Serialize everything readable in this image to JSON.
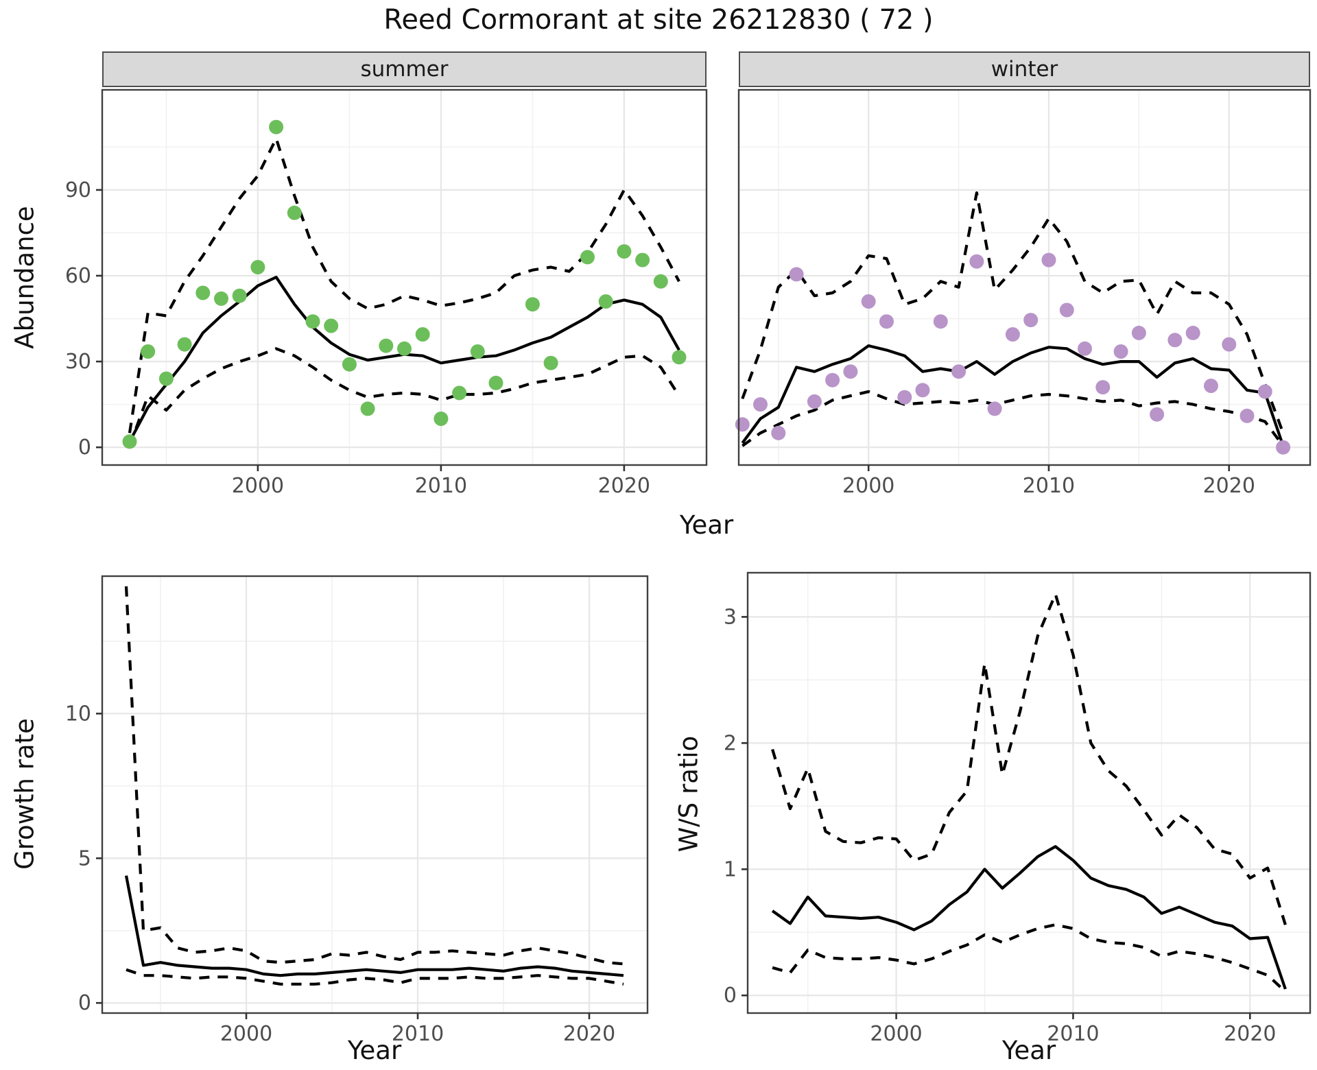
{
  "title": "Reed Cormorant at site 26212830 ( 72 )",
  "colors": {
    "summer_point": "#6CBE5A",
    "winter_point": "#B894C9",
    "line": "#000000",
    "grid_major": "#E7E7E7",
    "grid_minor": "#F1F1F1",
    "strip_bg": "#D9D9D9",
    "panel_border": "#404040",
    "tick_text": "#4D4D4D"
  },
  "chart_data": [
    {
      "id": "abundance-summer",
      "type": "line",
      "facet": "summer",
      "xlabel": "Year",
      "ylabel": "Abundance",
      "x_ticks": [
        2000,
        2010,
        2020
      ],
      "x_minor": [
        1995,
        2005,
        2015
      ],
      "y_ticks": [
        0,
        30,
        60,
        90
      ],
      "y_minor": [
        15,
        45,
        75,
        105
      ],
      "xlim": [
        1991.5,
        2024.5
      ],
      "ylim": [
        -6.2,
        125
      ],
      "x": [
        1993,
        1994,
        1995,
        1996,
        1997,
        1998,
        1999,
        2000,
        2001,
        2002,
        2003,
        2004,
        2005,
        2006,
        2007,
        2008,
        2009,
        2010,
        2011,
        2012,
        2013,
        2014,
        2015,
        2016,
        2017,
        2018,
        2019,
        2020,
        2021,
        2022,
        2023
      ],
      "series": [
        {
          "name": "observed-points",
          "style": "points",
          "color": "#6CBE5A",
          "values": [
            2,
            33.5,
            24,
            36,
            54,
            52,
            53,
            63,
            112,
            82,
            44,
            42.5,
            29,
            13.5,
            35.5,
            34.5,
            39.5,
            10,
            19,
            33.5,
            22.5,
            null,
            50,
            29.5,
            null,
            66.5,
            51,
            68.5,
            65.5,
            58,
            31.5
          ]
        },
        {
          "name": "upper-ci",
          "style": "dashed",
          "values": [
            5,
            47,
            46,
            58,
            67,
            77,
            87,
            95,
            108,
            88,
            70,
            58,
            52,
            48.5,
            50,
            53,
            51.5,
            49.5,
            50.5,
            52,
            54,
            60,
            62,
            63,
            61.5,
            68,
            78,
            90,
            81,
            70,
            58
          ]
        },
        {
          "name": "lower-ci",
          "style": "dashed",
          "values": [
            0.5,
            18,
            13,
            20,
            24,
            27.5,
            30,
            32,
            34.5,
            32,
            28,
            23.5,
            20,
            17.5,
            18.5,
            19,
            18.5,
            16.5,
            18.5,
            18.5,
            19,
            20.5,
            22.5,
            23.5,
            24.5,
            25.5,
            28.5,
            31.5,
            32,
            28,
            18
          ]
        },
        {
          "name": "mean",
          "style": "solid",
          "values": [
            2,
            14,
            22,
            30,
            40,
            46,
            51,
            56.5,
            59.5,
            50,
            42,
            36.5,
            32.5,
            30.5,
            31.5,
            32.5,
            32,
            29.5,
            30.5,
            31.5,
            32,
            34,
            36.5,
            38.5,
            42,
            45.5,
            50,
            51.5,
            50,
            45.5,
            34
          ]
        }
      ]
    },
    {
      "id": "abundance-winter",
      "type": "line",
      "facet": "winter",
      "xlabel": "Year",
      "ylabel": "Abundance",
      "x_ticks": [
        2000,
        2010,
        2020
      ],
      "x_minor": [
        1995,
        2005,
        2015
      ],
      "y_ticks": [
        0,
        30,
        60,
        90
      ],
      "y_minor": [
        15,
        45,
        75,
        105
      ],
      "xlim": [
        1992.8,
        2024.5
      ],
      "ylim": [
        -6.2,
        125
      ],
      "x": [
        1993,
        1994,
        1995,
        1996,
        1997,
        1998,
        1999,
        2000,
        2001,
        2002,
        2003,
        2004,
        2005,
        2006,
        2007,
        2008,
        2009,
        2010,
        2011,
        2012,
        2013,
        2014,
        2015,
        2016,
        2017,
        2018,
        2019,
        2020,
        2021,
        2022,
        2023
      ],
      "series": [
        {
          "name": "observed-points",
          "style": "points",
          "color": "#B894C9",
          "values": [
            8,
            15,
            5,
            60.5,
            16,
            23.5,
            26.5,
            51,
            44,
            17.5,
            20,
            44,
            26.5,
            65,
            13.5,
            39.5,
            44.5,
            65.5,
            48,
            34.5,
            21,
            33.5,
            40,
            11.5,
            37.5,
            40,
            21.5,
            36,
            11,
            19.5,
            0
          ]
        },
        {
          "name": "upper-ci",
          "style": "dashed",
          "values": [
            17,
            34,
            56,
            62,
            53,
            54,
            58,
            67,
            66,
            50,
            52,
            58,
            56,
            89,
            55,
            62,
            70,
            80,
            72,
            58,
            54,
            58,
            58.5,
            46.5,
            58,
            54,
            54,
            50,
            39.5,
            22,
            5
          ]
        },
        {
          "name": "lower-ci",
          "style": "dashed",
          "values": [
            0.5,
            5,
            8,
            11,
            13,
            16.5,
            18,
            19.5,
            17,
            15,
            15.5,
            16,
            15.5,
            16.5,
            15,
            16.5,
            18,
            18.5,
            18,
            17,
            16,
            16.5,
            14.5,
            15.5,
            16,
            15,
            13.5,
            12.5,
            11,
            9,
            0.5
          ]
        },
        {
          "name": "mean",
          "style": "solid",
          "values": [
            1.5,
            10,
            14,
            28,
            26.5,
            29,
            31,
            35.5,
            34,
            32,
            26.5,
            27.5,
            26.5,
            30,
            25.5,
            30,
            33,
            35,
            34.5,
            31,
            29,
            30,
            30,
            24.5,
            29.5,
            31,
            27.5,
            27,
            20,
            19,
            0.5
          ]
        }
      ]
    },
    {
      "id": "growth-rate",
      "type": "line",
      "facet": null,
      "xlabel": "Year",
      "ylabel": "Growth rate",
      "x_ticks": [
        2000,
        2010,
        2020
      ],
      "x_minor": [
        1995,
        2005,
        2015
      ],
      "y_ticks": [
        0,
        5,
        10
      ],
      "y_minor": [
        2.5,
        7.5,
        12.5
      ],
      "xlim": [
        1991.6,
        2023.4
      ],
      "ylim": [
        -0.35,
        14.75
      ],
      "x": [
        1993,
        1994,
        1995,
        1996,
        1997,
        1998,
        1999,
        2000,
        2001,
        2002,
        2003,
        2004,
        2005,
        2006,
        2007,
        2008,
        2009,
        2010,
        2011,
        2012,
        2013,
        2014,
        2015,
        2016,
        2017,
        2018,
        2019,
        2020,
        2021,
        2022
      ],
      "series": [
        {
          "name": "upper-ci",
          "style": "dashed",
          "values": [
            14.4,
            2.5,
            2.6,
            1.9,
            1.75,
            1.8,
            1.9,
            1.8,
            1.45,
            1.4,
            1.45,
            1.5,
            1.7,
            1.65,
            1.75,
            1.6,
            1.5,
            1.75,
            1.75,
            1.8,
            1.75,
            1.7,
            1.65,
            1.8,
            1.9,
            1.8,
            1.7,
            1.55,
            1.4,
            1.35
          ]
        },
        {
          "name": "lower-ci",
          "style": "dashed",
          "values": [
            1.15,
            0.95,
            0.95,
            0.9,
            0.85,
            0.9,
            0.9,
            0.85,
            0.75,
            0.65,
            0.65,
            0.65,
            0.7,
            0.8,
            0.85,
            0.8,
            0.7,
            0.85,
            0.85,
            0.85,
            0.9,
            0.85,
            0.85,
            0.9,
            0.95,
            0.9,
            0.85,
            0.85,
            0.75,
            0.65
          ]
        },
        {
          "name": "mean",
          "style": "solid",
          "values": [
            4.4,
            1.3,
            1.4,
            1.3,
            1.25,
            1.2,
            1.2,
            1.15,
            1.0,
            0.95,
            1.0,
            1.0,
            1.05,
            1.1,
            1.15,
            1.1,
            1.05,
            1.15,
            1.15,
            1.15,
            1.2,
            1.15,
            1.1,
            1.2,
            1.25,
            1.2,
            1.1,
            1.05,
            1.0,
            0.95
          ]
        }
      ]
    },
    {
      "id": "ws-ratio",
      "type": "line",
      "facet": null,
      "xlabel": "Year",
      "ylabel": "W/S ratio",
      "x_ticks": [
        2000,
        2010,
        2020
      ],
      "x_minor": [
        1995,
        2005,
        2015
      ],
      "y_ticks": [
        0,
        1,
        2,
        3
      ],
      "y_minor": [
        0.5,
        1.5,
        2.5
      ],
      "xlim": [
        1991.6,
        2023.4
      ],
      "ylim": [
        -0.14,
        3.35
      ],
      "x": [
        1993,
        1994,
        1995,
        1996,
        1997,
        1998,
        1999,
        2000,
        2001,
        2002,
        2003,
        2004,
        2005,
        2006,
        2007,
        2008,
        2009,
        2010,
        2011,
        2012,
        2013,
        2014,
        2015,
        2016,
        2017,
        2018,
        2019,
        2020,
        2021,
        2022
      ],
      "series": [
        {
          "name": "upper-ci",
          "style": "dashed",
          "values": [
            1.95,
            1.48,
            1.8,
            1.3,
            1.22,
            1.21,
            1.25,
            1.24,
            1.07,
            1.12,
            1.45,
            1.62,
            2.63,
            1.75,
            2.25,
            2.85,
            3.18,
            2.7,
            2.0,
            1.78,
            1.66,
            1.47,
            1.27,
            1.43,
            1.33,
            1.16,
            1.12,
            0.93,
            1.01,
            0.56
          ]
        },
        {
          "name": "lower-ci",
          "style": "dashed",
          "values": [
            0.22,
            0.18,
            0.36,
            0.3,
            0.29,
            0.29,
            0.3,
            0.28,
            0.25,
            0.29,
            0.35,
            0.4,
            0.48,
            0.42,
            0.48,
            0.53,
            0.56,
            0.53,
            0.45,
            0.42,
            0.41,
            0.38,
            0.31,
            0.35,
            0.33,
            0.3,
            0.26,
            0.21,
            0.16,
            0.03
          ]
        },
        {
          "name": "mean",
          "style": "solid",
          "values": [
            0.67,
            0.57,
            0.78,
            0.63,
            0.62,
            0.61,
            0.62,
            0.58,
            0.52,
            0.59,
            0.72,
            0.82,
            1.0,
            0.85,
            0.97,
            1.1,
            1.18,
            1.07,
            0.93,
            0.87,
            0.84,
            0.78,
            0.65,
            0.7,
            0.64,
            0.58,
            0.55,
            0.45,
            0.46,
            0.05
          ]
        }
      ]
    }
  ]
}
